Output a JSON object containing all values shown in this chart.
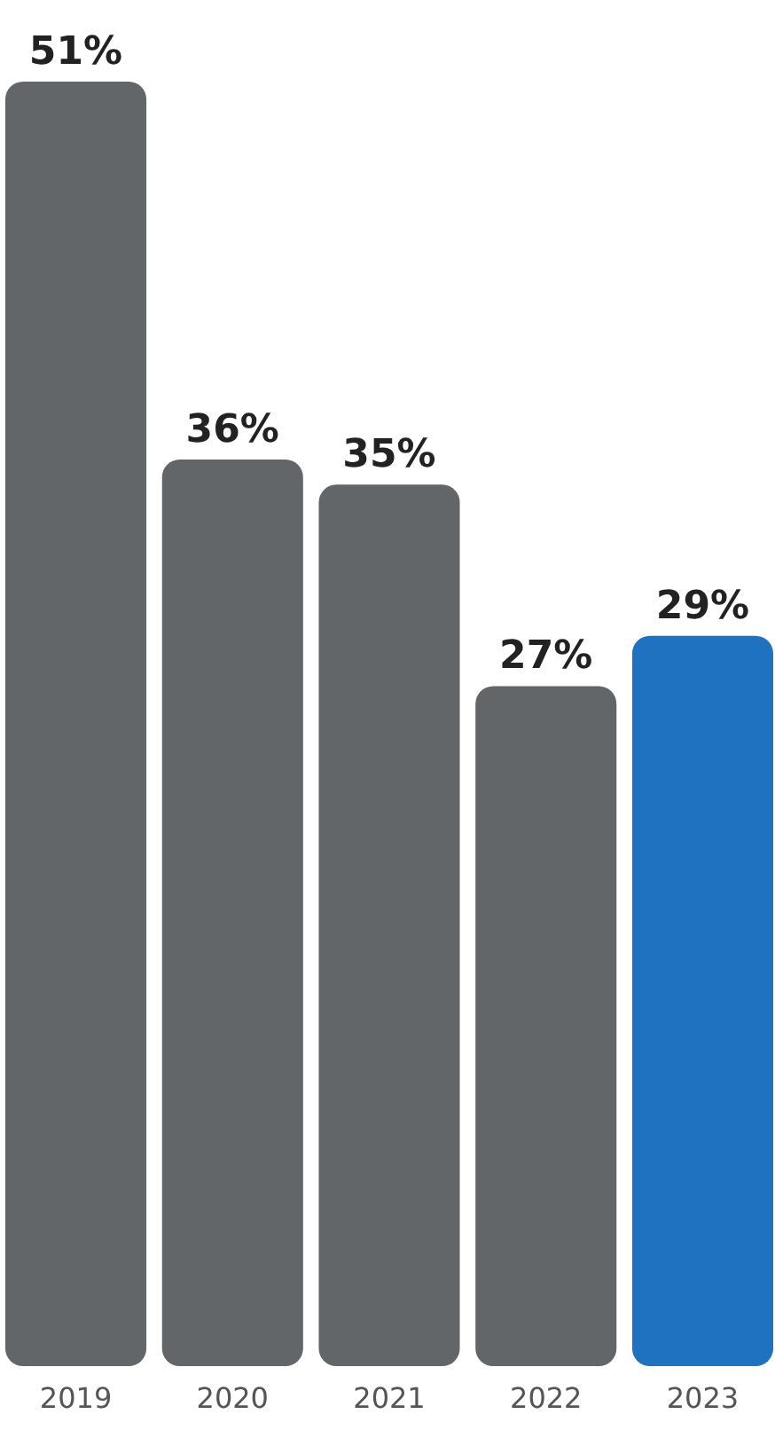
{
  "chart_data": {
    "type": "bar",
    "categories": [
      "2019",
      "2020",
      "2021",
      "2022",
      "2023"
    ],
    "values": [
      51,
      36,
      35,
      27,
      29
    ],
    "colors": [
      "#636668",
      "#636668",
      "#636668",
      "#636668",
      "#1f72c0"
    ],
    "value_labels": [
      "51%",
      "36%",
      "35%",
      "27%",
      "29%"
    ]
  }
}
